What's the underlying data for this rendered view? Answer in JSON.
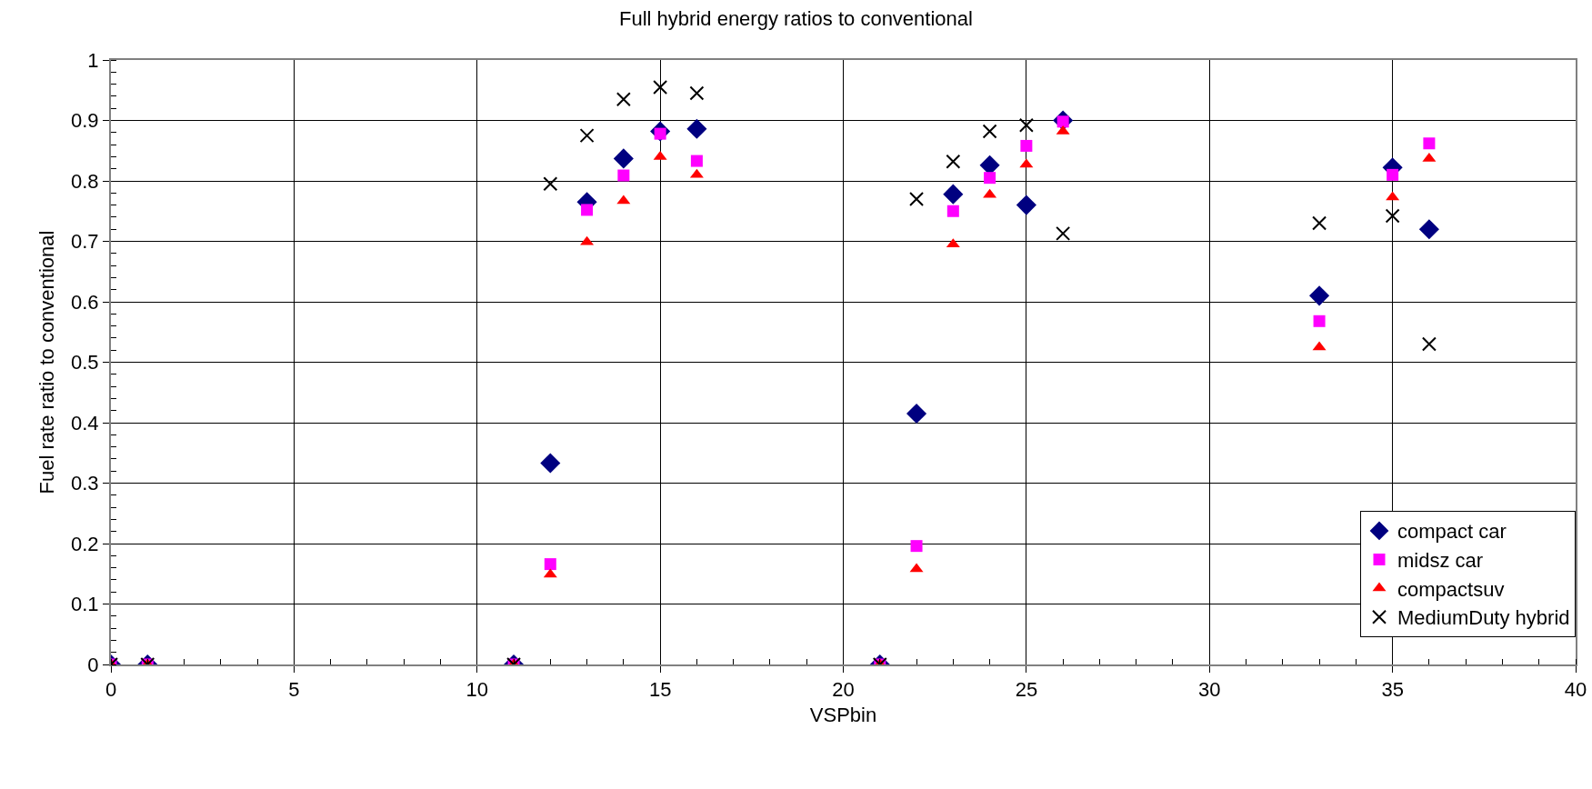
{
  "chart_data": {
    "type": "scatter",
    "title": "Full hybrid energy ratios to conventional",
    "xlabel": "VSPbin",
    "ylabel": "Fuel rate ratio to conventional",
    "x": [
      0,
      1,
      11,
      12,
      13,
      14,
      15,
      16,
      21,
      22,
      23,
      24,
      25,
      26,
      33,
      35,
      36
    ],
    "series": [
      {
        "name": "compact car",
        "color": "#000080",
        "marker": "diamond",
        "values": [
          0,
          0,
          0,
          0.333,
          0.765,
          0.837,
          0.882,
          0.886,
          0,
          0.415,
          0.778,
          0.826,
          0.76,
          0.9,
          0.61,
          0.822,
          0.72
        ]
      },
      {
        "name": "midsz car",
        "color": "#ff00ff",
        "marker": "square",
        "values": [
          0,
          0,
          0,
          0.166,
          0.752,
          0.809,
          0.878,
          0.833,
          0,
          0.196,
          0.75,
          0.805,
          0.858,
          0.898,
          0.568,
          0.81,
          0.862
        ]
      },
      {
        "name": "compactsuv",
        "color": "#ff0000",
        "marker": "triangle",
        "values": [
          0,
          0,
          0,
          0.149,
          0.699,
          0.767,
          0.84,
          0.81,
          0,
          0.158,
          0.695,
          0.777,
          0.827,
          0.882,
          0.525,
          0.773,
          0.837
        ]
      },
      {
        "name": "MediumDuty hybrid",
        "color": "#000000",
        "marker": "cross",
        "values": [
          0,
          0,
          0,
          0.795,
          0.875,
          0.935,
          0.955,
          0.945,
          0,
          0.77,
          0.832,
          0.882,
          0.892,
          0.713,
          0.73,
          0.742,
          0.53
        ]
      }
    ],
    "xlim": [
      0,
      40
    ],
    "xticks": [
      0,
      5,
      10,
      15,
      20,
      25,
      30,
      35,
      40
    ],
    "ylim": [
      0,
      1
    ],
    "yticks": [
      0,
      0.1,
      0.2,
      0.3,
      0.4,
      0.5,
      0.6,
      0.7,
      0.8,
      0.9,
      1
    ],
    "grid": true,
    "legend": "bottom right"
  }
}
